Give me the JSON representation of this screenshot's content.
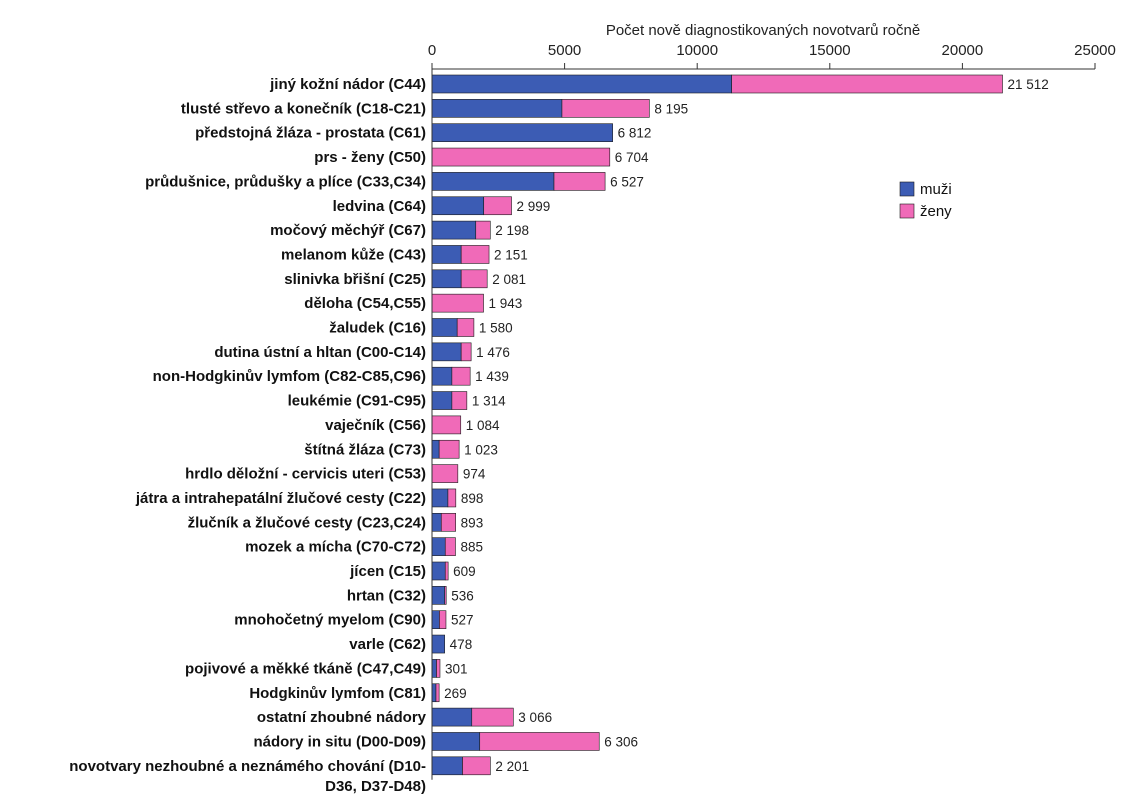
{
  "chart_data": {
    "type": "bar",
    "orientation": "horizontal",
    "stacked": true,
    "xlabel": "Počet nově diagnostikovaných novotvarů ročně",
    "xlim": [
      0,
      25000
    ],
    "xticks": [
      0,
      5000,
      10000,
      15000,
      20000,
      25000
    ],
    "x_axis_position": "top",
    "grid": false,
    "legend_position": "right",
    "series": [
      {
        "name": "muži",
        "color": "#3c5cb4"
      },
      {
        "name": "ženy",
        "color": "#f06ab8"
      }
    ],
    "rows": [
      {
        "label": "jiný kožní nádor (C44)",
        "muzi": 11300,
        "zeny": 10212,
        "total": 21512,
        "total_label": "21 512"
      },
      {
        "label": "tlusté střevo a konečník (C18-C21)",
        "muzi": 4900,
        "zeny": 3295,
        "total": 8195,
        "total_label": "8 195"
      },
      {
        "label": "předstojná žláza - prostata (C61)",
        "muzi": 6812,
        "zeny": 0,
        "total": 6812,
        "total_label": "6 812"
      },
      {
        "label": "prs - ženy (C50)",
        "muzi": 0,
        "zeny": 6704,
        "total": 6704,
        "total_label": "6 704"
      },
      {
        "label": "průdušnice, průdušky a plíce (C33,C34)",
        "muzi": 4600,
        "zeny": 1927,
        "total": 6527,
        "total_label": "6 527"
      },
      {
        "label": "ledvina (C64)",
        "muzi": 1950,
        "zeny": 1049,
        "total": 2999,
        "total_label": "2 999"
      },
      {
        "label": "močový měchýř (C67)",
        "muzi": 1650,
        "zeny": 548,
        "total": 2198,
        "total_label": "2 198"
      },
      {
        "label": "melanom kůže (C43)",
        "muzi": 1100,
        "zeny": 1051,
        "total": 2151,
        "total_label": "2 151"
      },
      {
        "label": "slinivka břišní (C25)",
        "muzi": 1100,
        "zeny": 981,
        "total": 2081,
        "total_label": "2 081"
      },
      {
        "label": "děloha (C54,C55)",
        "muzi": 0,
        "zeny": 1943,
        "total": 1943,
        "total_label": "1 943"
      },
      {
        "label": "žaludek (C16)",
        "muzi": 950,
        "zeny": 630,
        "total": 1580,
        "total_label": "1 580"
      },
      {
        "label": "dutina ústní a hltan (C00-C14)",
        "muzi": 1100,
        "zeny": 376,
        "total": 1476,
        "total_label": "1 476"
      },
      {
        "label": "non-Hodgkinův lymfom (C82-C85,C96)",
        "muzi": 750,
        "zeny": 689,
        "total": 1439,
        "total_label": "1 439"
      },
      {
        "label": "leukémie (C91-C95)",
        "muzi": 750,
        "zeny": 564,
        "total": 1314,
        "total_label": "1 314"
      },
      {
        "label": "vaječník (C56)",
        "muzi": 0,
        "zeny": 1084,
        "total": 1084,
        "total_label": "1 084"
      },
      {
        "label": "štítná žláza (C73)",
        "muzi": 270,
        "zeny": 753,
        "total": 1023,
        "total_label": "1 023"
      },
      {
        "label": "hrdlo děložní - cervicis uteri (C53)",
        "muzi": 0,
        "zeny": 974,
        "total": 974,
        "total_label": "974"
      },
      {
        "label": "játra a intrahepatální žlučové cesty (C22)",
        "muzi": 600,
        "zeny": 298,
        "total": 898,
        "total_label": "898"
      },
      {
        "label": "žlučník a žlučové cesty (C23,C24)",
        "muzi": 350,
        "zeny": 543,
        "total": 893,
        "total_label": "893"
      },
      {
        "label": "mozek a mícha (C70-C72)",
        "muzi": 500,
        "zeny": 385,
        "total": 885,
        "total_label": "885"
      },
      {
        "label": "jícen (C15)",
        "muzi": 500,
        "zeny": 109,
        "total": 609,
        "total_label": "609"
      },
      {
        "label": "hrtan (C32)",
        "muzi": 480,
        "zeny": 56,
        "total": 536,
        "total_label": "536"
      },
      {
        "label": "mnohočetný myelom (C90)",
        "muzi": 280,
        "zeny": 247,
        "total": 527,
        "total_label": "527"
      },
      {
        "label": "varle (C62)",
        "muzi": 478,
        "zeny": 0,
        "total": 478,
        "total_label": "478"
      },
      {
        "label": "pojivové a měkké tkáně (C47,C49)",
        "muzi": 170,
        "zeny": 131,
        "total": 301,
        "total_label": "301"
      },
      {
        "label": "Hodgkinův lymfom (C81)",
        "muzi": 150,
        "zeny": 119,
        "total": 269,
        "total_label": "269"
      },
      {
        "label": "ostatní zhoubné nádory",
        "muzi": 1500,
        "zeny": 1566,
        "total": 3066,
        "total_label": "3 066"
      },
      {
        "label": "nádory in situ (D00-D09)",
        "muzi": 1800,
        "zeny": 4506,
        "total": 6306,
        "total_label": "6 306"
      },
      {
        "label": [
          "novotvary nezhoubné a neznámého chování (D10-",
          "D36, D37-D48)"
        ],
        "muzi": 1150,
        "zeny": 1051,
        "total": 2201,
        "total_label": "2 201"
      }
    ]
  }
}
